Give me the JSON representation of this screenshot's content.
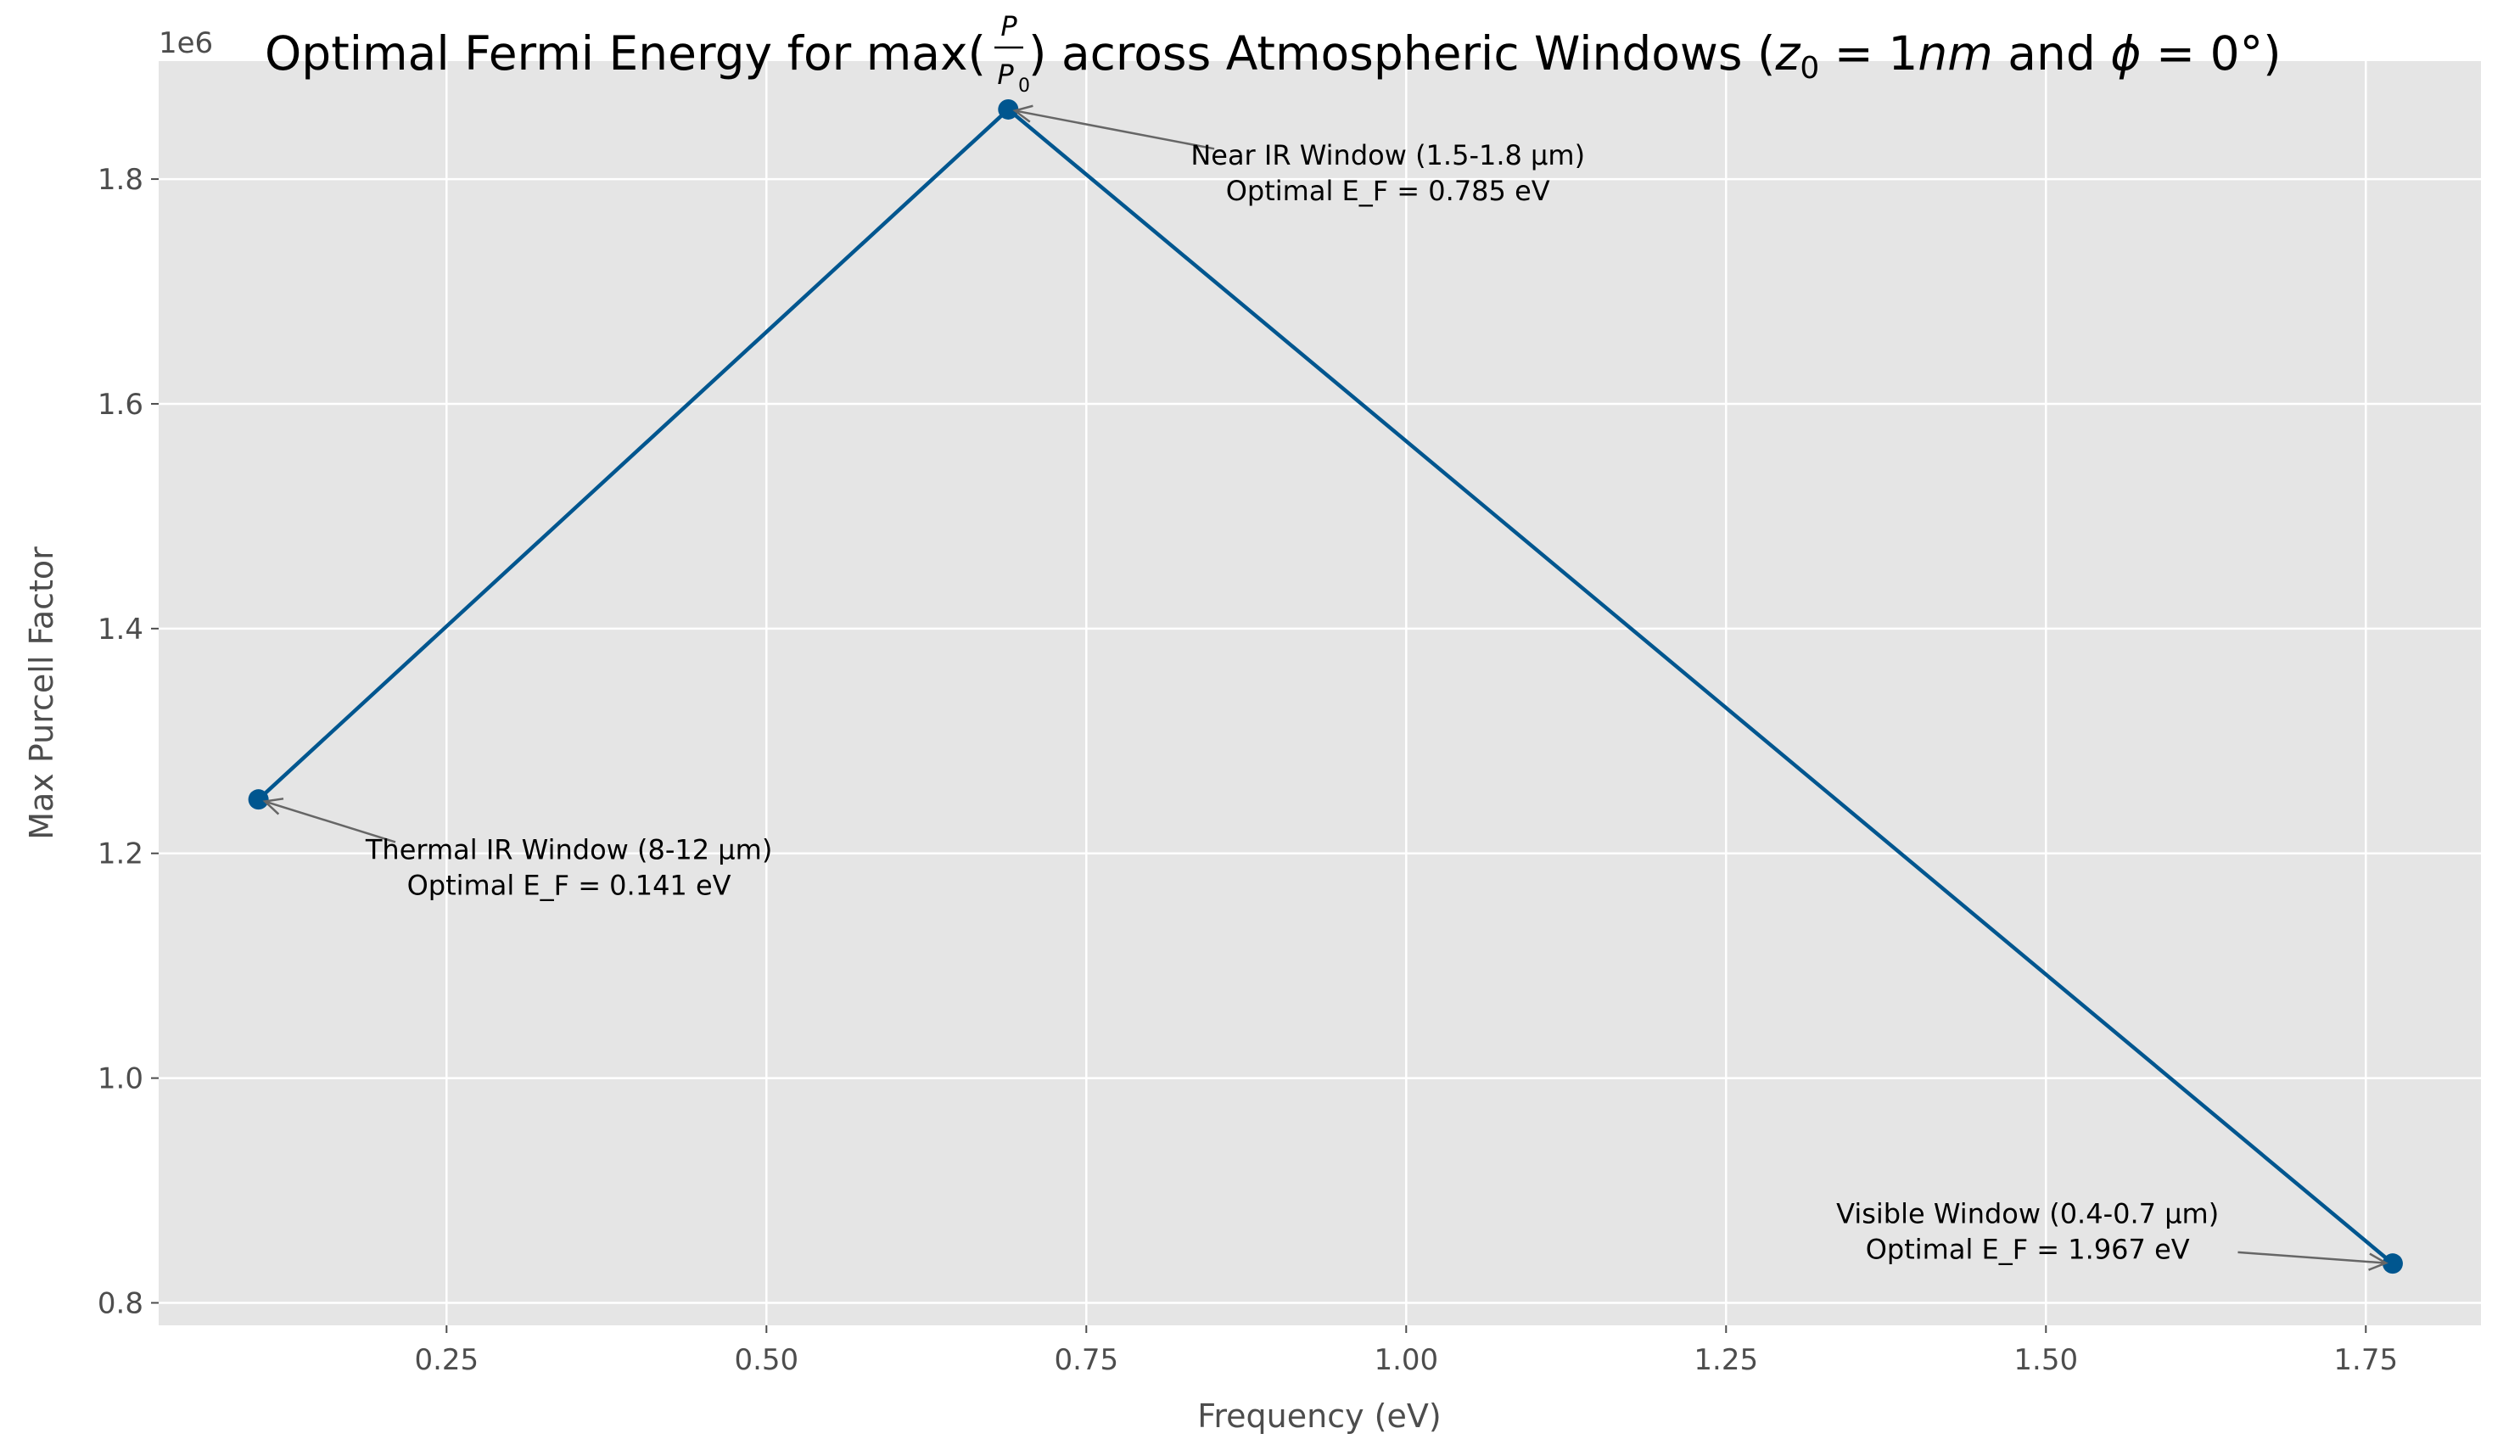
{
  "chart_data": {
    "type": "line",
    "title": {
      "prefix": "Optimal Fermi Energy for max(",
      "frac_num": "P",
      "frac_den": "P",
      "frac_den_sub": "0",
      "middle": ") across Atmospheric Windows (",
      "z": "z",
      "z_sub": "0",
      "eq1": " = 1",
      "nm": "nm",
      "and": " and ",
      "phi": "ϕ",
      "eq2": " = 0°)"
    },
    "xlabel": "Frequency (eV)",
    "ylabel": "Max Purcell Factor",
    "y_offset_text": "1e6",
    "xlim": [
      0.025,
      1.84
    ],
    "ylim": [
      780000,
      1905000
    ],
    "x_ticks": [
      0.25,
      0.5,
      0.75,
      1.0,
      1.25,
      1.5,
      1.75
    ],
    "x_tick_labels": [
      "0.25",
      "0.50",
      "0.75",
      "1.00",
      "1.25",
      "1.50",
      "1.75"
    ],
    "y_ticks": [
      800000,
      1000000,
      1200000,
      1400000,
      1600000,
      1800000
    ],
    "y_tick_labels": [
      "0.8",
      "1.0",
      "1.2",
      "1.4",
      "1.6",
      "1.8"
    ],
    "grid": true,
    "series": [
      {
        "color": "#00568f",
        "x": [
          0.103,
          0.689,
          1.771
        ],
        "y": [
          1248000,
          1862000,
          835000
        ]
      }
    ],
    "annotations": [
      {
        "lines": [
          "Thermal IR Window (8-12 μm)",
          "Optimal E_F = 0.141 eV"
        ],
        "point": [
          0.103,
          1248000
        ],
        "text_anchor_xy": [
          0.16,
          1195000
        ],
        "arrow_tail": [
          0.21,
          1210000
        ]
      },
      {
        "lines": [
          "Near IR Window (1.5-1.8 μm)",
          "Optimal E_F = 0.785 eV"
        ],
        "point": [
          0.689,
          1862000
        ],
        "text_anchor_xy": [
          0.8,
          1813000
        ],
        "arrow_tail": [
          0.85,
          1827000
        ]
      },
      {
        "lines": [
          "Visible Window (0.4-0.7 μm)",
          "Optimal E_F = 1.967 eV"
        ],
        "point": [
          1.771,
          835000
        ],
        "text_anchor_xy": [
          1.3,
          871000
        ],
        "arrow_tail": [
          1.65,
          845000
        ]
      }
    ],
    "colors": {
      "plot_background": "#e5e5e5",
      "grid": "#ffffff",
      "line": "#00568f",
      "arrow": "#666666"
    }
  }
}
